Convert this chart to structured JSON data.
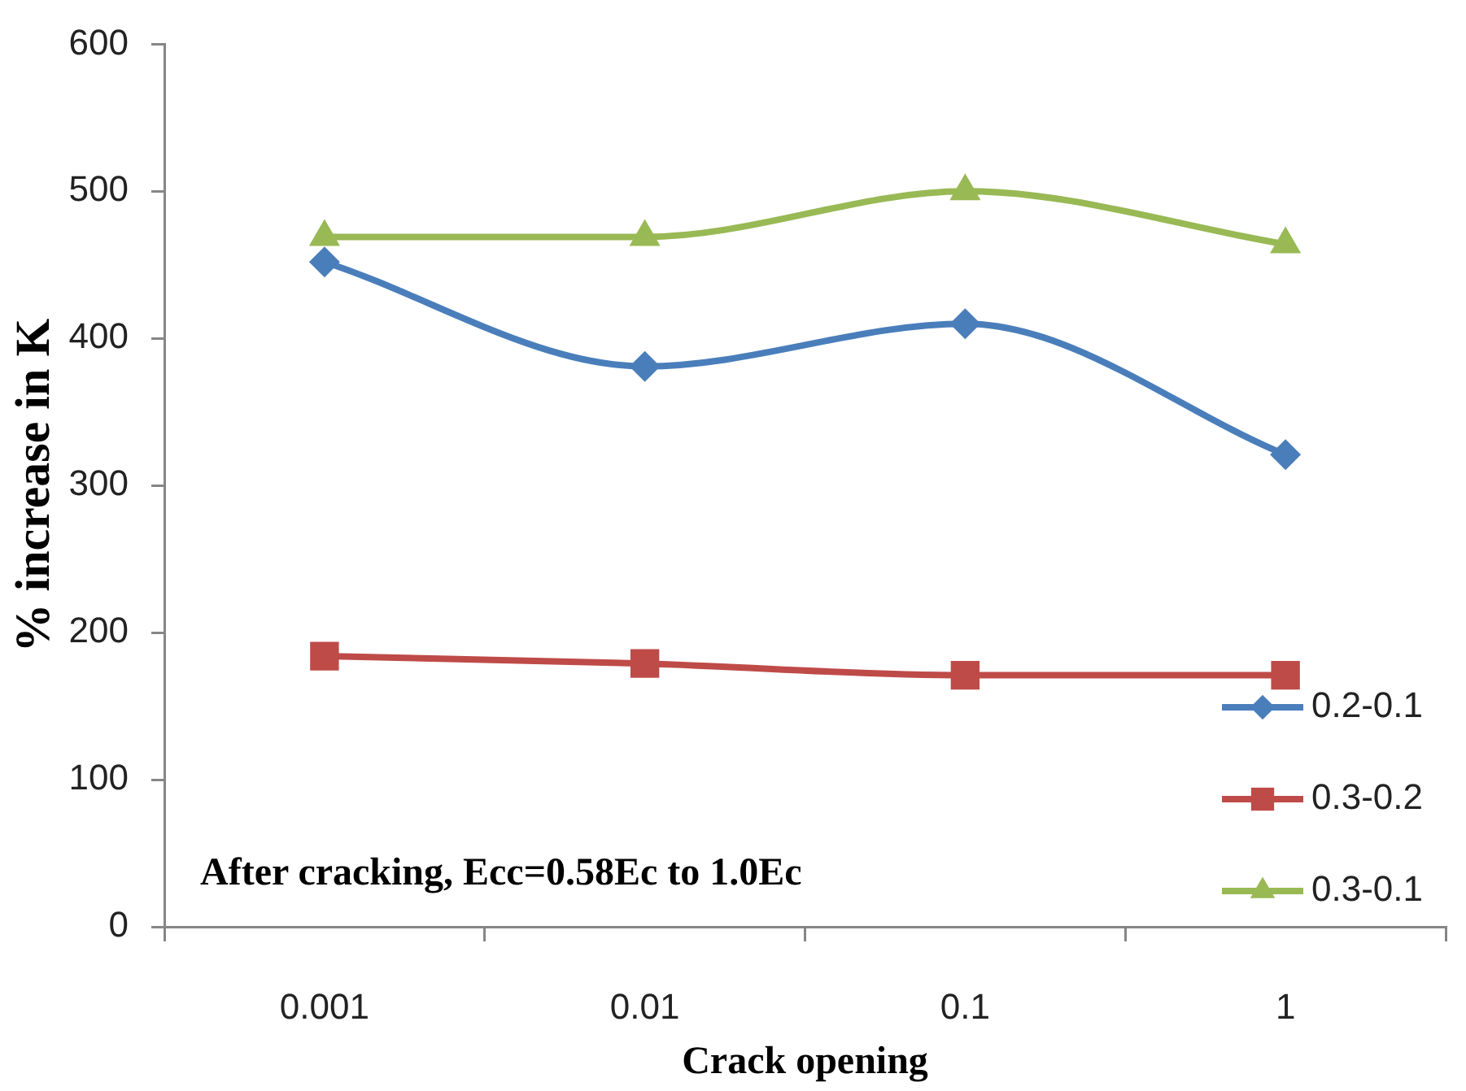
{
  "chart_data": {
    "type": "line",
    "xlabel": "Crack opening",
    "ylabel": "% increase in K",
    "categories": [
      "0.001",
      "0.01",
      "0.1",
      "1"
    ],
    "series": [
      {
        "name": "0.2-0.1",
        "color": "#4a7ebb",
        "marker": "diamond",
        "values": [
          452,
          381,
          410,
          321
        ]
      },
      {
        "name": "0.3-0.2",
        "color": "#be4b48",
        "marker": "square",
        "values": [
          184,
          179,
          171,
          171
        ]
      },
      {
        "name": "0.3-0.1",
        "color": "#98b954",
        "marker": "triangle",
        "values": [
          469,
          469,
          500,
          464
        ]
      }
    ],
    "ylim": [
      0,
      600
    ],
    "yticks": [
      0,
      100,
      200,
      300,
      400,
      500,
      600
    ],
    "legend": "bottom right",
    "annotations": [
      "After cracking, Ecc=0.58Ec to 1.0Ec"
    ]
  }
}
